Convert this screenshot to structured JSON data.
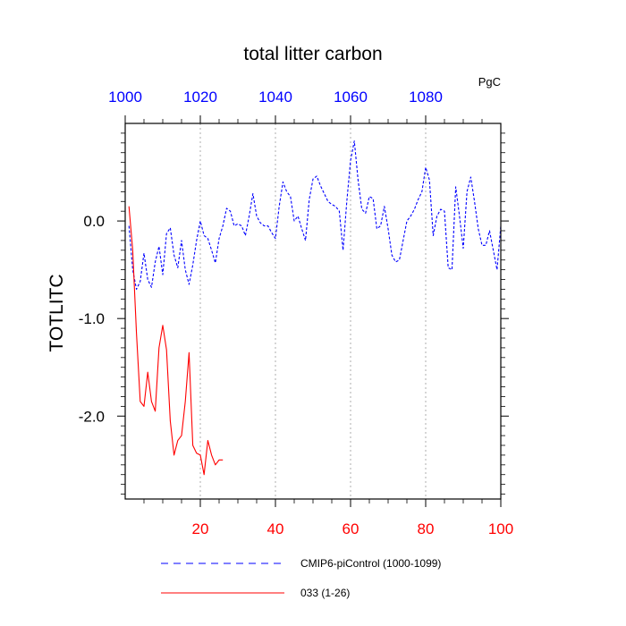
{
  "chart_data": {
    "type": "line",
    "title": "total litter carbon",
    "units": "PgC",
    "ylabel": "TOTLITC",
    "xlabel": "",
    "ylim": [
      -2.85,
      1.0
    ],
    "x_bottom": {
      "range": [
        0,
        100
      ],
      "ticks": [
        "20",
        "40",
        "60",
        "80",
        "100"
      ],
      "color": "#ff0000"
    },
    "x_top": {
      "range": [
        1000,
        1100
      ],
      "ticks": [
        "1000",
        "1020",
        "1040",
        "1060",
        "1080"
      ],
      "color": "#0000ff"
    },
    "y_ticks": [
      "0.0",
      "-1.0",
      "-2.0"
    ],
    "grid": "vertical dotted at x = 20, 40, 60, 80",
    "legend_position": "bottom",
    "series": [
      {
        "name": "CMIP6-piControl (1000-1099)",
        "color": "#0000ff",
        "dash": "dashed",
        "x": [
          1,
          2,
          3,
          4,
          5,
          6,
          7,
          8,
          9,
          10,
          11,
          12,
          13,
          14,
          15,
          16,
          17,
          18,
          19,
          20,
          21,
          22,
          23,
          24,
          25,
          26,
          27,
          28,
          29,
          30,
          31,
          32,
          33,
          34,
          35,
          36,
          37,
          38,
          39,
          40,
          41,
          42,
          43,
          44,
          45,
          46,
          47,
          48,
          49,
          50,
          51,
          52,
          53,
          54,
          55,
          56,
          57,
          58,
          59,
          60,
          61,
          62,
          63,
          64,
          65,
          66,
          67,
          68,
          69,
          70,
          71,
          72,
          73,
          74,
          75,
          76,
          77,
          78,
          79,
          80,
          81,
          82,
          83,
          84,
          85,
          86,
          87,
          88,
          89,
          90,
          91,
          92,
          93,
          94,
          95,
          96,
          97,
          98,
          99,
          100
        ],
        "values": [
          -0.05,
          -0.5,
          -0.7,
          -0.62,
          -0.33,
          -0.6,
          -0.68,
          -0.42,
          -0.26,
          -0.55,
          -0.13,
          -0.07,
          -0.35,
          -0.48,
          -0.2,
          -0.5,
          -0.65,
          -0.45,
          -0.2,
          0.0,
          -0.15,
          -0.18,
          -0.3,
          -0.43,
          -0.18,
          -0.05,
          0.13,
          0.1,
          -0.05,
          -0.03,
          -0.05,
          -0.15,
          0.05,
          0.28,
          0.05,
          -0.02,
          -0.05,
          -0.05,
          -0.12,
          -0.18,
          0.15,
          0.4,
          0.3,
          0.25,
          0.0,
          0.05,
          -0.08,
          -0.2,
          0.22,
          0.43,
          0.46,
          0.36,
          0.28,
          0.2,
          0.17,
          0.15,
          0.1,
          -0.3,
          0.2,
          0.62,
          0.82,
          0.42,
          0.12,
          0.08,
          0.25,
          0.23,
          -0.08,
          -0.05,
          0.15,
          -0.08,
          -0.35,
          -0.42,
          -0.4,
          -0.2,
          0.0,
          0.05,
          0.12,
          0.22,
          0.3,
          0.55,
          0.42,
          -0.15,
          0.05,
          0.12,
          0.1,
          -0.48,
          -0.5,
          0.35,
          0.05,
          -0.28,
          0.3,
          0.45,
          0.2,
          -0.08,
          -0.25,
          -0.25,
          -0.1,
          -0.3,
          -0.5,
          -0.05
        ]
      },
      {
        "name": "033 (1-26)",
        "color": "#ff0000",
        "dash": "solid",
        "x": [
          1,
          2,
          3,
          4,
          5,
          6,
          7,
          8,
          9,
          10,
          11,
          12,
          13,
          14,
          15,
          16,
          17,
          18,
          19,
          20,
          21,
          22,
          23,
          24,
          25,
          26
        ],
        "values": [
          0.15,
          -0.3,
          -1.15,
          -1.85,
          -1.9,
          -1.55,
          -1.85,
          -1.95,
          -1.3,
          -1.07,
          -1.32,
          -2.05,
          -2.4,
          -2.25,
          -2.2,
          -1.85,
          -1.35,
          -2.3,
          -2.38,
          -2.4,
          -2.6,
          -2.25,
          -2.4,
          -2.5,
          -2.45,
          -2.45
        ]
      }
    ]
  }
}
